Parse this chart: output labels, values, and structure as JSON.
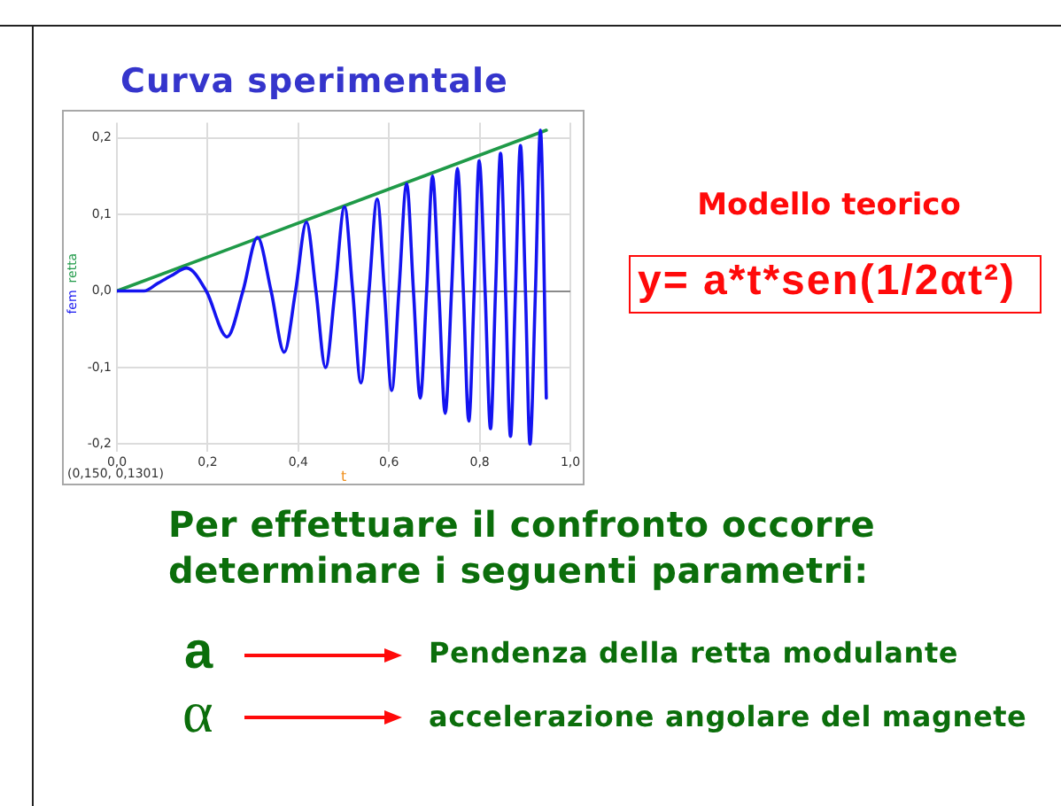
{
  "chart_data": {
    "type": "line",
    "title": "Curva sperimentale",
    "xlabel": "t",
    "annotations": [
      "(0,150, 0,1301)",
      "Modello teorico",
      "y= a*t*sen(1/2αt²)",
      "Per effettuare il confronto occorre determinare i seguenti parametri:",
      "a",
      "Pendenza della retta modulante",
      "α",
      "accelerazione angolare del magnete"
    ],
    "xlim": [
      0,
      1.0
    ],
    "ylim": [
      -0.21,
      0.22
    ],
    "xticks": [
      {
        "value": 0,
        "label": "0,0"
      },
      {
        "value": 0.2,
        "label": "0,2"
      },
      {
        "value": 0.4,
        "label": "0,4"
      },
      {
        "value": 0.6,
        "label": "0,6"
      },
      {
        "value": 0.8,
        "label": "0,8"
      },
      {
        "value": 1.0,
        "label": "1,0"
      }
    ],
    "yticks": [
      {
        "value": -0.2,
        "label": "-0,2"
      },
      {
        "value": -0.1,
        "label": "-0,1"
      },
      {
        "value": 0,
        "label": "0,0"
      },
      {
        "value": 0.1,
        "label": "0,1"
      },
      {
        "value": 0.2,
        "label": "0,2"
      }
    ],
    "grid": true,
    "series": [
      {
        "name": "fem",
        "color": "#1414f0",
        "x": [
          0,
          0.03,
          0.06,
          0.09,
          0.12,
          0.154,
          0.197,
          0.243,
          0.278,
          0.31,
          0.34,
          0.369,
          0.394,
          0.418,
          0.439,
          0.46,
          0.481,
          0.502,
          0.52,
          0.538,
          0.556,
          0.574,
          0.59,
          0.606,
          0.622,
          0.639,
          0.654,
          0.669,
          0.683,
          0.696,
          0.71,
          0.724,
          0.738,
          0.751,
          0.764,
          0.776,
          0.788,
          0.799,
          0.812,
          0.824,
          0.835,
          0.846,
          0.857,
          0.868,
          0.879,
          0.89,
          0.901,
          0.911,
          0.923,
          0.934,
          0.947
        ],
        "values": [
          0,
          0,
          0,
          0.01,
          0.02,
          0.03,
          0,
          -0.06,
          0,
          0.07,
          0,
          -0.08,
          0,
          0.09,
          0,
          -0.1,
          0,
          0.11,
          0,
          -0.12,
          0,
          0.12,
          0,
          -0.13,
          0,
          0.14,
          0,
          -0.14,
          0,
          0.15,
          0,
          -0.16,
          0,
          0.16,
          0,
          -0.17,
          0,
          0.17,
          0,
          -0.18,
          0,
          0.18,
          0,
          -0.19,
          0,
          0.19,
          0,
          -0.2,
          0,
          0.21,
          -0.14
        ]
      },
      {
        "name": "retta",
        "color": "#1f9a48",
        "x": [
          0,
          0.947
        ],
        "values": [
          0,
          0.21
        ]
      }
    ]
  }
}
